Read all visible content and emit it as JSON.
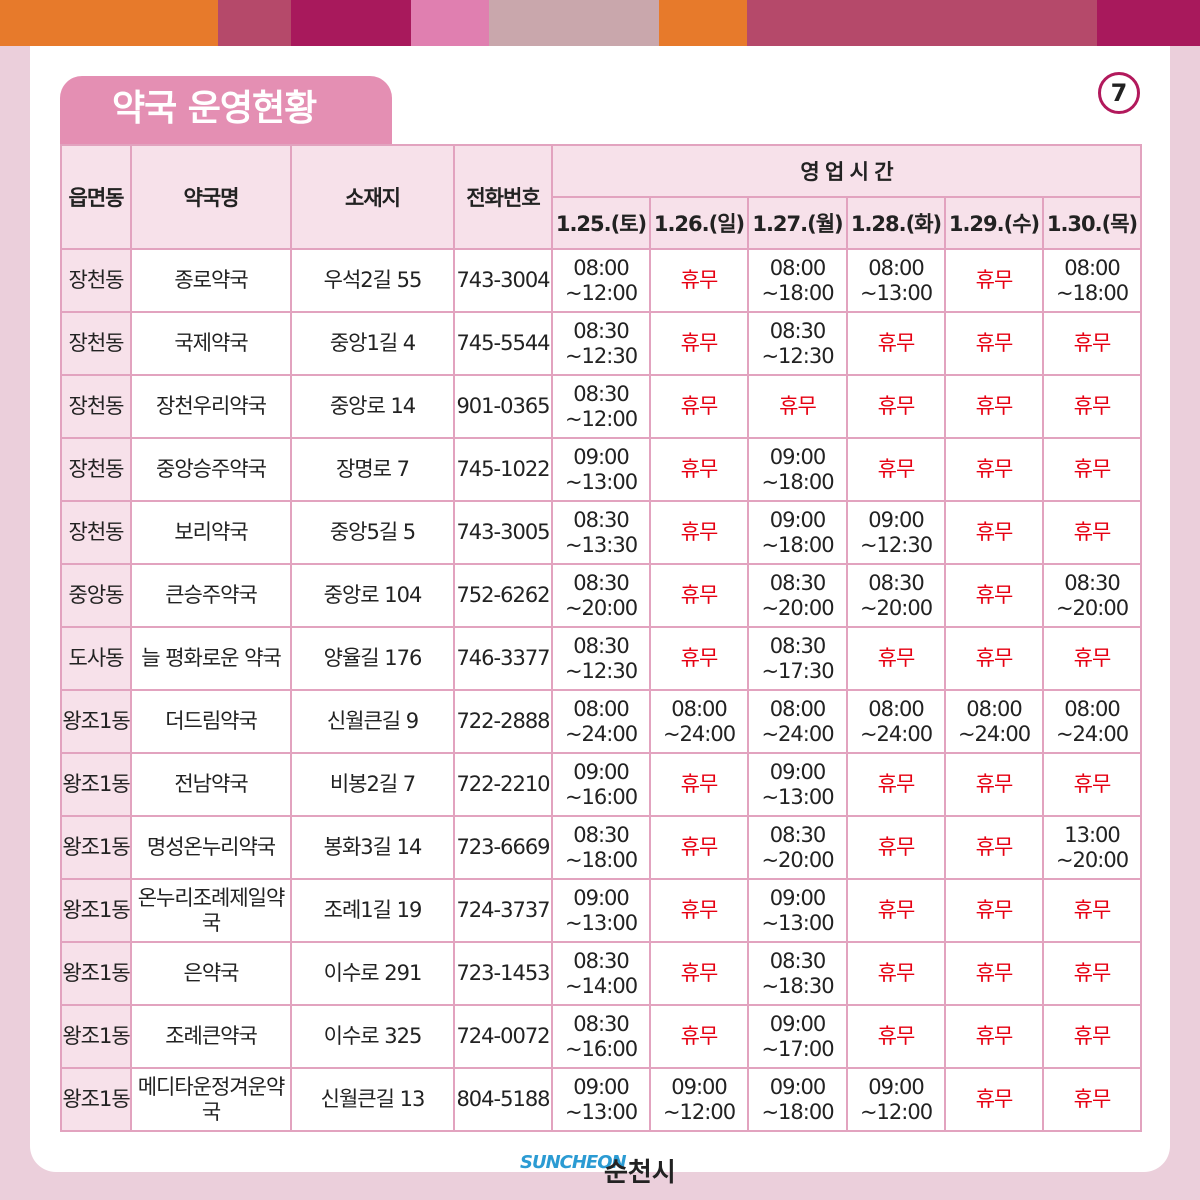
{
  "colors": {
    "bars": [
      "#e77a2b",
      "#b5496a",
      "#a8195c",
      "#e07fb0",
      "#c9a7ac",
      "#a8195c",
      "#e77a2b",
      "#b5496a",
      "#b5496a",
      "#a8195c"
    ],
    "closed": "#e60012",
    "accent": "#b2195c"
  },
  "title": "약국 운영현황",
  "page_number": "7",
  "table": {
    "headers": {
      "district": "읍면동",
      "name": "약국명",
      "address": "소재지",
      "phone": "전화번호",
      "hours": "영 업 시 간"
    },
    "dates": [
      "1.25.(토)",
      "1.26.(일)",
      "1.27.(월)",
      "1.28.(화)",
      "1.29.(수)",
      "1.30.(목)"
    ],
    "rows": [
      {
        "district": "장천동",
        "name": "종로약국",
        "address": "우석2길 55",
        "phone": "743-3004",
        "hours": [
          [
            "08:00",
            "~12:00"
          ],
          [
            "휴무"
          ],
          [
            "08:00",
            "~18:00"
          ],
          [
            "08:00",
            "~13:00"
          ],
          [
            "휴무"
          ],
          [
            "08:00",
            "~18:00"
          ]
        ]
      },
      {
        "district": "장천동",
        "name": "국제약국",
        "address": "중앙1길 4",
        "phone": "745-5544",
        "hours": [
          [
            "08:30",
            "~12:30"
          ],
          [
            "휴무"
          ],
          [
            "08:30",
            "~12:30"
          ],
          [
            "휴무"
          ],
          [
            "휴무"
          ],
          [
            "휴무"
          ]
        ]
      },
      {
        "district": "장천동",
        "name": "장천우리약국",
        "address": "중앙로 14",
        "phone": "901-0365",
        "hours": [
          [
            "08:30",
            "~12:00"
          ],
          [
            "휴무"
          ],
          [
            "휴무"
          ],
          [
            "휴무"
          ],
          [
            "휴무"
          ],
          [
            "휴무"
          ]
        ]
      },
      {
        "district": "장천동",
        "name": "중앙승주약국",
        "address": "장명로 7",
        "phone": "745-1022",
        "hours": [
          [
            "09:00",
            "~13:00"
          ],
          [
            "휴무"
          ],
          [
            "09:00",
            "~18:00"
          ],
          [
            "휴무"
          ],
          [
            "휴무"
          ],
          [
            "휴무"
          ]
        ]
      },
      {
        "district": "장천동",
        "name": "보리약국",
        "address": "중앙5길 5",
        "phone": "743-3005",
        "hours": [
          [
            "08:30",
            "~13:30"
          ],
          [
            "휴무"
          ],
          [
            "09:00",
            "~18:00"
          ],
          [
            "09:00",
            "~12:30"
          ],
          [
            "휴무"
          ],
          [
            "휴무"
          ]
        ]
      },
      {
        "district": "중앙동",
        "name": "큰승주약국",
        "address": "중앙로 104",
        "phone": "752-6262",
        "hours": [
          [
            "08:30",
            "~20:00"
          ],
          [
            "휴무"
          ],
          [
            "08:30",
            "~20:00"
          ],
          [
            "08:30",
            "~20:00"
          ],
          [
            "휴무"
          ],
          [
            "08:30",
            "~20:00"
          ]
        ]
      },
      {
        "district": "도사동",
        "name": "늘 평화로운 약국",
        "address": "양율길 176",
        "phone": "746-3377",
        "hours": [
          [
            "08:30",
            "~12:30"
          ],
          [
            "휴무"
          ],
          [
            "08:30",
            "~17:30"
          ],
          [
            "휴무"
          ],
          [
            "휴무"
          ],
          [
            "휴무"
          ]
        ]
      },
      {
        "district": "왕조1동",
        "name": "더드림약국",
        "address": "신월큰길 9",
        "phone": "722-2888",
        "hours": [
          [
            "08:00",
            "~24:00"
          ],
          [
            "08:00",
            "~24:00"
          ],
          [
            "08:00",
            "~24:00"
          ],
          [
            "08:00",
            "~24:00"
          ],
          [
            "08:00",
            "~24:00"
          ],
          [
            "08:00",
            "~24:00"
          ]
        ]
      },
      {
        "district": "왕조1동",
        "name": "전남약국",
        "address": "비봉2길 7",
        "phone": "722-2210",
        "hours": [
          [
            "09:00",
            "~16:00"
          ],
          [
            "휴무"
          ],
          [
            "09:00",
            "~13:00"
          ],
          [
            "휴무"
          ],
          [
            "휴무"
          ],
          [
            "휴무"
          ]
        ]
      },
      {
        "district": "왕조1동",
        "name": "명성온누리약국",
        "address": "봉화3길 14",
        "phone": "723-6669",
        "hours": [
          [
            "08:30",
            "~18:00"
          ],
          [
            "휴무"
          ],
          [
            "08:30",
            "~20:00"
          ],
          [
            "휴무"
          ],
          [
            "휴무"
          ],
          [
            "13:00",
            "~20:00"
          ]
        ]
      },
      {
        "district": "왕조1동",
        "name": "온누리조례제일약국",
        "address": "조례1길 19",
        "phone": "724-3737",
        "hours": [
          [
            "09:00",
            "~13:00"
          ],
          [
            "휴무"
          ],
          [
            "09:00",
            "~13:00"
          ],
          [
            "휴무"
          ],
          [
            "휴무"
          ],
          [
            "휴무"
          ]
        ]
      },
      {
        "district": "왕조1동",
        "name": "은약국",
        "address": "이수로 291",
        "phone": "723-1453",
        "hours": [
          [
            "08:30",
            "~14:00"
          ],
          [
            "휴무"
          ],
          [
            "08:30",
            "~18:30"
          ],
          [
            "휴무"
          ],
          [
            "휴무"
          ],
          [
            "휴무"
          ]
        ]
      },
      {
        "district": "왕조1동",
        "name": "조례큰약국",
        "address": "이수로 325",
        "phone": "724-0072",
        "hours": [
          [
            "08:30",
            "~16:00"
          ],
          [
            "휴무"
          ],
          [
            "09:00",
            "~17:00"
          ],
          [
            "휴무"
          ],
          [
            "휴무"
          ],
          [
            "휴무"
          ]
        ]
      },
      {
        "district": "왕조1동",
        "name": "메디타운정겨운약국",
        "address": "신월큰길 13",
        "phone": "804-5188",
        "hours": [
          [
            "09:00",
            "~13:00"
          ],
          [
            "09:00",
            "~12:00"
          ],
          [
            "09:00",
            "~18:00"
          ],
          [
            "09:00",
            "~12:00"
          ],
          [
            "휴무"
          ],
          [
            "휴무"
          ]
        ]
      }
    ]
  },
  "footer": {
    "logo_text": "SUNCHEON",
    "logo_sub": "순천시",
    "city_name": "순천시"
  }
}
